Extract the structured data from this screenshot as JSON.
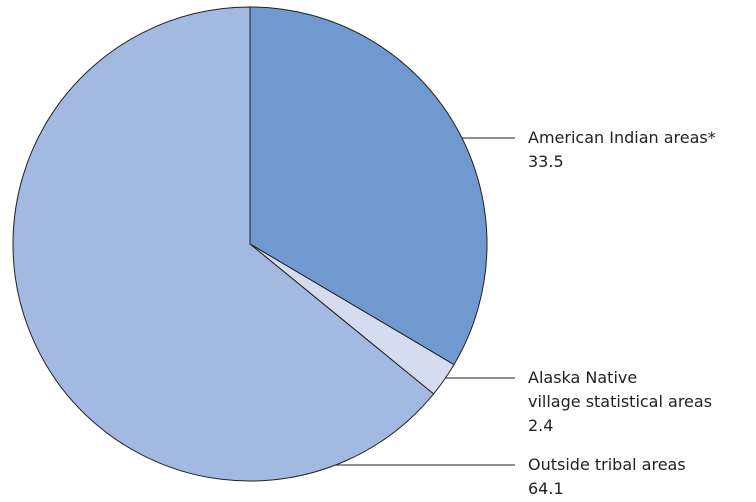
{
  "chart_data": {
    "type": "pie",
    "categories": [
      "American Indian areas*",
      "Alaska Native\nvillage statistical areas",
      "Outside tribal areas"
    ],
    "values": [
      33.5,
      2.4,
      64.1
    ],
    "colors": [
      "#7099cf",
      "#d6dcf0",
      "#a2b9e1"
    ]
  }
}
